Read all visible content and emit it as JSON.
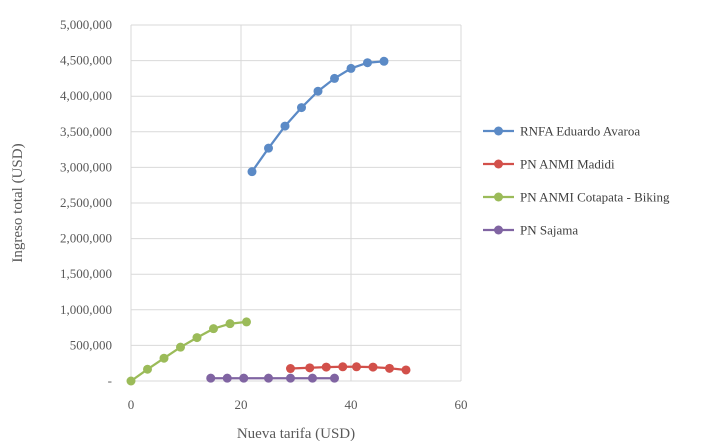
{
  "chart_data": {
    "type": "scatter",
    "title": "",
    "xlabel": "Nueva tarifa (USD)",
    "ylabel": "Ingreso total (USD)",
    "xlim": [
      0,
      60
    ],
    "ylim": [
      0,
      5000000
    ],
    "x_ticks": [
      "0",
      "20",
      "40",
      "60"
    ],
    "y_ticks": [
      "-",
      "500,000",
      "1,000,000",
      "1,500,000",
      "2,000,000",
      "2,500,000",
      "3,000,000",
      "3,500,000",
      "4,000,000",
      "4,500,000",
      "5,000,000"
    ],
    "grid": "on",
    "legend_position": "right",
    "series": [
      {
        "name": "RNFA Eduardo Avaroa",
        "color": "#5b8ac6",
        "points": [
          [
            22,
            2940000
          ],
          [
            25,
            3270000
          ],
          [
            28,
            3580000
          ],
          [
            31,
            3840000
          ],
          [
            34,
            4070000
          ],
          [
            37,
            4250000
          ],
          [
            40,
            4390000
          ],
          [
            43,
            4470000
          ],
          [
            46,
            4490000
          ]
        ]
      },
      {
        "name": "PN ANMI Madidi",
        "color": "#d2504a",
        "points": [
          [
            29,
            175000
          ],
          [
            32.5,
            185000
          ],
          [
            35.5,
            195000
          ],
          [
            38.5,
            200000
          ],
          [
            41,
            200000
          ],
          [
            44,
            195000
          ],
          [
            47,
            178000
          ],
          [
            50,
            155000
          ]
        ]
      },
      {
        "name": "PN ANMI Cotapata - Biking",
        "color": "#9bbb59",
        "points": [
          [
            0,
            0
          ],
          [
            3,
            165000
          ],
          [
            6,
            320000
          ],
          [
            9,
            475000
          ],
          [
            12,
            610000
          ],
          [
            15,
            735000
          ],
          [
            18,
            805000
          ],
          [
            21,
            830000
          ]
        ]
      },
      {
        "name": "PN Sajama",
        "color": "#8064a2",
        "points": [
          [
            14.5,
            40000
          ],
          [
            17.5,
            40000
          ],
          [
            20.5,
            40000
          ],
          [
            25,
            40000
          ],
          [
            29,
            40000
          ],
          [
            33,
            40000
          ],
          [
            37,
            40000
          ]
        ]
      }
    ]
  }
}
